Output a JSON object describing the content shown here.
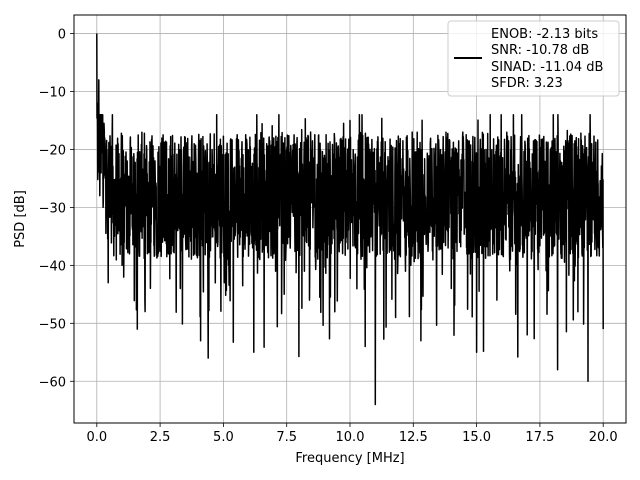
{
  "chart_data": {
    "type": "line",
    "xlabel": "Frequency [MHz]",
    "ylabel": "PSD [dB]",
    "xlim": [
      -0.9,
      20.9
    ],
    "ylim": [
      -67.2,
      3.2
    ],
    "xticks": [
      0.0,
      2.5,
      5.0,
      7.5,
      10.0,
      12.5,
      15.0,
      17.5,
      20.0
    ],
    "xtick_labels": [
      "0.0",
      "2.5",
      "5.0",
      "7.5",
      "10.0",
      "12.5",
      "15.0",
      "17.5",
      "20.0"
    ],
    "yticks": [
      0,
      -10,
      -20,
      -30,
      -40,
      -50,
      -60
    ],
    "ytick_labels": [
      "0",
      "−10",
      "−20",
      "−30",
      "−40",
      "−50",
      "−60"
    ],
    "grid": true,
    "legend": {
      "placement": "top-right",
      "lines": [
        "ENOB: -2.13 bits",
        "SNR: -10.78 dB",
        "SINAD: -11.04 dB",
        "SFDR: 3.23"
      ]
    },
    "series": [
      {
        "color": "#000000",
        "note_points": "dense noise floor, approx. -20 to -45 dB with spikes",
        "x": [
          0.0,
          0.02,
          0.05,
          0.08,
          0.12,
          0.18,
          0.25,
          0.35,
          0.45,
          0.55,
          0.7,
          0.85,
          1.0,
          1.2,
          1.4,
          1.6,
          1.8,
          2.0,
          2.3,
          2.6,
          3.0,
          3.3,
          3.6,
          4.0,
          4.1,
          4.4,
          4.8,
          5.2,
          5.6,
          6.0,
          6.2,
          6.6,
          7.0,
          7.4,
          7.8,
          8.2,
          8.6,
          9.0,
          9.4,
          9.8,
          10.0,
          10.3,
          10.6,
          11.0,
          11.4,
          11.8,
          12.0,
          12.4,
          12.8,
          13.2,
          13.6,
          14.0,
          14.4,
          14.7,
          15.0,
          15.4,
          15.8,
          16.2,
          16.6,
          17.0,
          17.4,
          17.8,
          18.2,
          18.6,
          19.0,
          19.4,
          19.8,
          20.0
        ],
        "y": [
          0.0,
          -12.0,
          -22.0,
          -8.0,
          -28.0,
          -15.0,
          -30.0,
          -20.0,
          -43.0,
          -22.0,
          -35.0,
          -25.0,
          -40.0,
          -22.0,
          -33.0,
          -51.0,
          -24.0,
          -38.0,
          -22.0,
          -36.0,
          -25.0,
          -44.0,
          -22.0,
          -34.0,
          -53.0,
          -56.0,
          -24.0,
          -40.0,
          -22.0,
          -36.0,
          -55.0,
          -23.0,
          -38.0,
          -45.0,
          -24.0,
          -41.0,
          -22.0,
          -36.0,
          -48.0,
          -25.0,
          -15.0,
          -38.0,
          -54.0,
          -64.0,
          -24.0,
          -49.0,
          -22.0,
          -40.0,
          -53.0,
          -24.0,
          -36.0,
          -44.0,
          -22.0,
          -38.0,
          -55.0,
          -25.0,
          -46.0,
          -22.0,
          -40.0,
          -52.0,
          -24.0,
          -38.0,
          -58.0,
          -22.0,
          -48.0,
          -60.0,
          -26.0,
          -51.0
        ]
      }
    ]
  }
}
